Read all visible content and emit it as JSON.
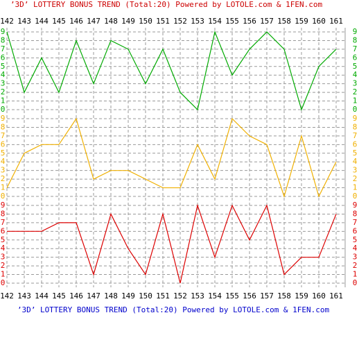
{
  "chart_data": {
    "type": "line",
    "title": "’3D’ LOTTERY BONUS TREND (Total:20)  Powered by LOTOLE.com & 1FEN.com",
    "footer": "’3D’ LOTTERY BONUS TREND (Total:20)  Powered by LOTOLE.com & 1FEN.com",
    "title_color": "#cc0000",
    "footer_color": "#0000cc",
    "categories": [
      "142",
      "143",
      "144",
      "145",
      "146",
      "147",
      "148",
      "149",
      "150",
      "151",
      "152",
      "153",
      "154",
      "155",
      "156",
      "157",
      "158",
      "159",
      "160",
      "161"
    ],
    "ylim": [
      0,
      9
    ],
    "yticks": [
      0,
      1,
      2,
      3,
      4,
      5,
      6,
      7,
      8,
      9
    ],
    "grid": true,
    "series": [
      {
        "color": "#00aa00",
        "values": [
          9,
          2,
          6,
          2,
          8,
          3,
          8,
          7,
          3,
          7,
          2,
          0,
          9,
          4,
          7,
          9,
          7,
          0,
          5,
          7
        ]
      },
      {
        "color": "#f0b000",
        "values": [
          1,
          5,
          6,
          6,
          9,
          2,
          3,
          3,
          2,
          1,
          1,
          6,
          2,
          9,
          7,
          6,
          0,
          7,
          0,
          4
        ]
      },
      {
        "color": "#dd0000",
        "values": [
          6,
          6,
          6,
          7,
          7,
          1,
          8,
          4,
          1,
          8,
          0,
          9,
          3,
          9,
          5,
          9,
          1,
          3,
          3,
          8
        ]
      }
    ]
  }
}
